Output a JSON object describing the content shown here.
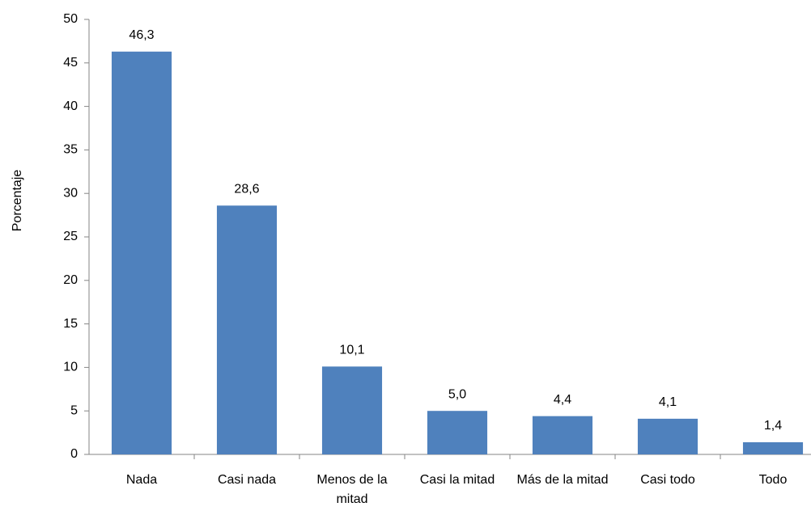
{
  "chart_data": {
    "type": "bar",
    "y_label": "Porcentaje",
    "categories": [
      "Nada",
      "Casi nada",
      "Menos de la mitad",
      "Casi la mitad",
      "Más de la mitad",
      "Casi todo",
      "Todo"
    ],
    "values": [
      46.3,
      28.6,
      10.1,
      5.0,
      4.4,
      4.1,
      1.4
    ],
    "value_labels": [
      "46,3",
      "28,6",
      "10,1",
      "5,0",
      "4,4",
      "4,1",
      "1,4"
    ],
    "color": "#4f81bd",
    "ylim": [
      0,
      50
    ],
    "yticks": [
      0,
      5,
      10,
      15,
      20,
      25,
      30,
      35,
      40,
      45,
      50
    ],
    "grid": false
  }
}
